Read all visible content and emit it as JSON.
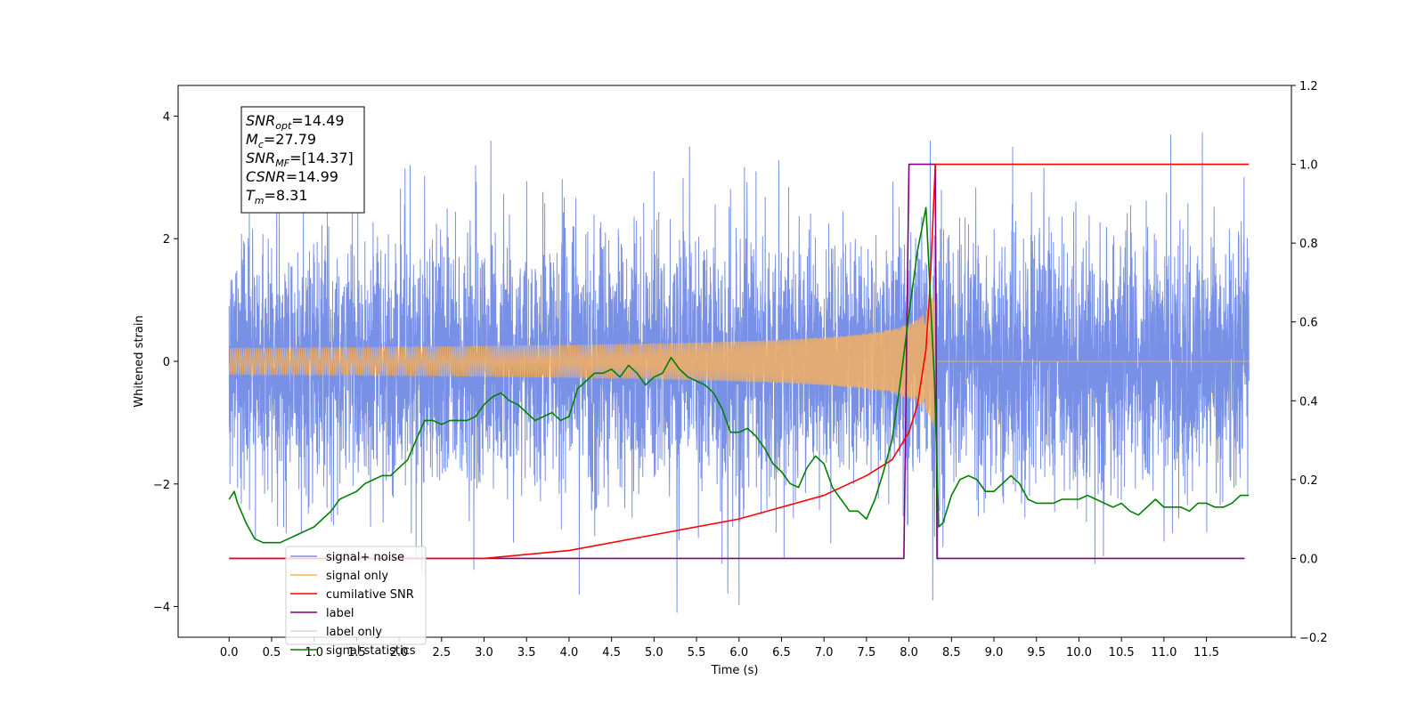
{
  "chart_data": {
    "type": "line",
    "xlabel": "Time (s)",
    "ylabel": "Whitened strain",
    "xlim": [
      -0.6,
      12.5
    ],
    "ylim": [
      -4.5,
      4.5
    ],
    "ylim_right": [
      -0.2,
      1.2
    ],
    "x_ticks": [
      0.0,
      0.5,
      1.0,
      1.5,
      2.0,
      2.5,
      3.0,
      3.5,
      4.0,
      4.5,
      5.0,
      5.5,
      6.0,
      6.5,
      7.0,
      7.5,
      8.0,
      8.5,
      9.0,
      9.5,
      10.0,
      10.5,
      11.0,
      11.5
    ],
    "x_tick_labels": [
      "0.0",
      "0.5",
      "1.0",
      "1.5",
      "2.0",
      "2.5",
      "3.0",
      "3.5",
      "4.0",
      "4.5",
      "5.0",
      "5.5",
      "6.0",
      "6.5",
      "7.0",
      "7.5",
      "8.0",
      "8.5",
      "9.0",
      "9.5",
      "10.0",
      "10.5",
      "11.0",
      "11.5"
    ],
    "y_ticks": [
      4,
      2,
      0,
      -2,
      -4
    ],
    "y_tick_labels": [
      "4",
      "2",
      "0",
      "−2",
      "−4"
    ],
    "y2_ticks": [
      1.2,
      1.0,
      0.8,
      0.6,
      0.4,
      0.2,
      0.0,
      -0.2
    ],
    "y2_tick_labels": [
      "1.2",
      "1.0",
      "0.8",
      "0.6",
      "0.4",
      "0.2",
      "0.0",
      "−0.2"
    ],
    "legend_position": "lower-left",
    "grid": false,
    "info_box": [
      {
        "base": "SNR",
        "sub": "opt",
        "value": "=14.49"
      },
      {
        "base": "M",
        "sub": "c",
        "value": "=27.79"
      },
      {
        "base": "SNR",
        "sub": "MF",
        "value": "=[14.37]"
      },
      {
        "base": "CSNR",
        "sub": "",
        "value": "=14.99"
      },
      {
        "base": "T",
        "sub": "m",
        "value": "=8.31"
      }
    ],
    "series": [
      {
        "name": "signal+ noise",
        "axis": "left",
        "color": "#7890e6",
        "style": "noise",
        "x_range": [
          0.0,
          12.0
        ],
        "envelope_sigma": 1.0,
        "notable_spikes": [
          {
            "x": 0.31,
            "y": -2.9
          },
          {
            "x": 0.85,
            "y": -2.8
          },
          {
            "x": 2.13,
            "y": 3.2
          },
          {
            "x": 2.2,
            "y": -3.2
          },
          {
            "x": 2.9,
            "y": 3.2
          },
          {
            "x": 2.88,
            "y": -3.4
          },
          {
            "x": 3.08,
            "y": 3.6
          },
          {
            "x": 4.12,
            "y": -3.8
          },
          {
            "x": 5.0,
            "y": 3.1
          },
          {
            "x": 5.27,
            "y": -4.1
          },
          {
            "x": 5.8,
            "y": -3.3
          },
          {
            "x": 6.2,
            "y": 3.1
          },
          {
            "x": 6.53,
            "y": -3.2
          },
          {
            "x": 8.25,
            "y": 3.6
          },
          {
            "x": 8.28,
            "y": -3.9
          },
          {
            "x": 9.22,
            "y": 3.5
          },
          {
            "x": 11.08,
            "y": 3.7
          },
          {
            "x": 11.1,
            "y": -2.8
          }
        ]
      },
      {
        "name": "signal only",
        "axis": "left",
        "color": "#f5b060",
        "style": "chirp",
        "merger_time": 8.31,
        "peak_amplitude": 1.5,
        "x_range": [
          0.0,
          12.0
        ]
      },
      {
        "name": "cumilative SNR",
        "axis": "right",
        "color": "#ff0000",
        "points": [
          [
            0.0,
            0.0
          ],
          [
            3.0,
            0.0
          ],
          [
            4.0,
            0.02
          ],
          [
            5.0,
            0.06
          ],
          [
            6.0,
            0.1
          ],
          [
            6.5,
            0.13
          ],
          [
            7.0,
            0.16
          ],
          [
            7.5,
            0.21
          ],
          [
            7.8,
            0.25
          ],
          [
            8.0,
            0.32
          ],
          [
            8.1,
            0.39
          ],
          [
            8.2,
            0.53
          ],
          [
            8.25,
            0.7
          ],
          [
            8.29,
            0.9
          ],
          [
            8.31,
            1.0
          ],
          [
            12.0,
            1.0
          ]
        ]
      },
      {
        "name": "label",
        "axis": "right",
        "color": "#800080",
        "points": [
          [
            0.0,
            0.0
          ],
          [
            7.94,
            0.0
          ],
          [
            8.0,
            1.0
          ],
          [
            8.31,
            1.0
          ],
          [
            8.33,
            0.0
          ],
          [
            11.95,
            0.0
          ]
        ]
      },
      {
        "name": "label only",
        "axis": "right",
        "color": "#d9d9d9",
        "points": []
      },
      {
        "name": "signal statistics",
        "axis": "right",
        "color": "#008000",
        "points": [
          [
            0.0,
            0.15
          ],
          [
            0.06,
            0.17
          ],
          [
            0.1,
            0.14
          ],
          [
            0.2,
            0.09
          ],
          [
            0.3,
            0.05
          ],
          [
            0.4,
            0.04
          ],
          [
            0.5,
            0.04
          ],
          [
            0.6,
            0.04
          ],
          [
            0.7,
            0.05
          ],
          [
            0.8,
            0.06
          ],
          [
            0.9,
            0.07
          ],
          [
            1.0,
            0.08
          ],
          [
            1.1,
            0.1
          ],
          [
            1.2,
            0.12
          ],
          [
            1.3,
            0.15
          ],
          [
            1.4,
            0.16
          ],
          [
            1.5,
            0.17
          ],
          [
            1.6,
            0.19
          ],
          [
            1.7,
            0.2
          ],
          [
            1.8,
            0.21
          ],
          [
            1.9,
            0.21
          ],
          [
            2.0,
            0.23
          ],
          [
            2.1,
            0.25
          ],
          [
            2.2,
            0.3
          ],
          [
            2.3,
            0.35
          ],
          [
            2.4,
            0.35
          ],
          [
            2.5,
            0.34
          ],
          [
            2.6,
            0.35
          ],
          [
            2.7,
            0.35
          ],
          [
            2.8,
            0.35
          ],
          [
            2.9,
            0.36
          ],
          [
            3.0,
            0.39
          ],
          [
            3.1,
            0.41
          ],
          [
            3.2,
            0.42
          ],
          [
            3.3,
            0.4
          ],
          [
            3.4,
            0.39
          ],
          [
            3.5,
            0.37
          ],
          [
            3.6,
            0.35
          ],
          [
            3.7,
            0.36
          ],
          [
            3.8,
            0.37
          ],
          [
            3.9,
            0.35
          ],
          [
            4.0,
            0.36
          ],
          [
            4.1,
            0.43
          ],
          [
            4.2,
            0.45
          ],
          [
            4.3,
            0.47
          ],
          [
            4.4,
            0.47
          ],
          [
            4.5,
            0.48
          ],
          [
            4.6,
            0.46
          ],
          [
            4.7,
            0.49
          ],
          [
            4.8,
            0.47
          ],
          [
            4.9,
            0.44
          ],
          [
            5.0,
            0.46
          ],
          [
            5.1,
            0.47
          ],
          [
            5.2,
            0.51
          ],
          [
            5.3,
            0.48
          ],
          [
            5.4,
            0.46
          ],
          [
            5.5,
            0.45
          ],
          [
            5.6,
            0.44
          ],
          [
            5.7,
            0.42
          ],
          [
            5.8,
            0.38
          ],
          [
            5.9,
            0.32
          ],
          [
            6.0,
            0.32
          ],
          [
            6.1,
            0.33
          ],
          [
            6.2,
            0.31
          ],
          [
            6.3,
            0.28
          ],
          [
            6.4,
            0.24
          ],
          [
            6.5,
            0.22
          ],
          [
            6.6,
            0.19
          ],
          [
            6.7,
            0.18
          ],
          [
            6.8,
            0.23
          ],
          [
            6.9,
            0.26
          ],
          [
            7.0,
            0.24
          ],
          [
            7.1,
            0.18
          ],
          [
            7.2,
            0.15
          ],
          [
            7.3,
            0.12
          ],
          [
            7.4,
            0.12
          ],
          [
            7.5,
            0.1
          ],
          [
            7.6,
            0.15
          ],
          [
            7.7,
            0.22
          ],
          [
            7.8,
            0.3
          ],
          [
            7.9,
            0.45
          ],
          [
            8.0,
            0.62
          ],
          [
            8.1,
            0.78
          ],
          [
            8.2,
            0.89
          ],
          [
            8.3,
            0.45
          ],
          [
            8.35,
            0.08
          ],
          [
            8.4,
            0.09
          ],
          [
            8.5,
            0.16
          ],
          [
            8.6,
            0.2
          ],
          [
            8.7,
            0.21
          ],
          [
            8.8,
            0.2
          ],
          [
            8.9,
            0.17
          ],
          [
            9.0,
            0.17
          ],
          [
            9.1,
            0.19
          ],
          [
            9.2,
            0.21
          ],
          [
            9.3,
            0.19
          ],
          [
            9.4,
            0.15
          ],
          [
            9.5,
            0.14
          ],
          [
            9.6,
            0.14
          ],
          [
            9.7,
            0.14
          ],
          [
            9.8,
            0.15
          ],
          [
            9.9,
            0.15
          ],
          [
            10.0,
            0.15
          ],
          [
            10.1,
            0.16
          ],
          [
            10.2,
            0.15
          ],
          [
            10.3,
            0.14
          ],
          [
            10.4,
            0.13
          ],
          [
            10.5,
            0.14
          ],
          [
            10.6,
            0.12
          ],
          [
            10.7,
            0.11
          ],
          [
            10.8,
            0.13
          ],
          [
            10.9,
            0.15
          ],
          [
            11.0,
            0.13
          ],
          [
            11.1,
            0.13
          ],
          [
            11.2,
            0.13
          ],
          [
            11.3,
            0.12
          ],
          [
            11.4,
            0.14
          ],
          [
            11.5,
            0.14
          ],
          [
            11.6,
            0.13
          ],
          [
            11.7,
            0.13
          ],
          [
            11.8,
            0.14
          ],
          [
            11.9,
            0.16
          ],
          [
            12.0,
            0.16
          ]
        ]
      }
    ]
  }
}
